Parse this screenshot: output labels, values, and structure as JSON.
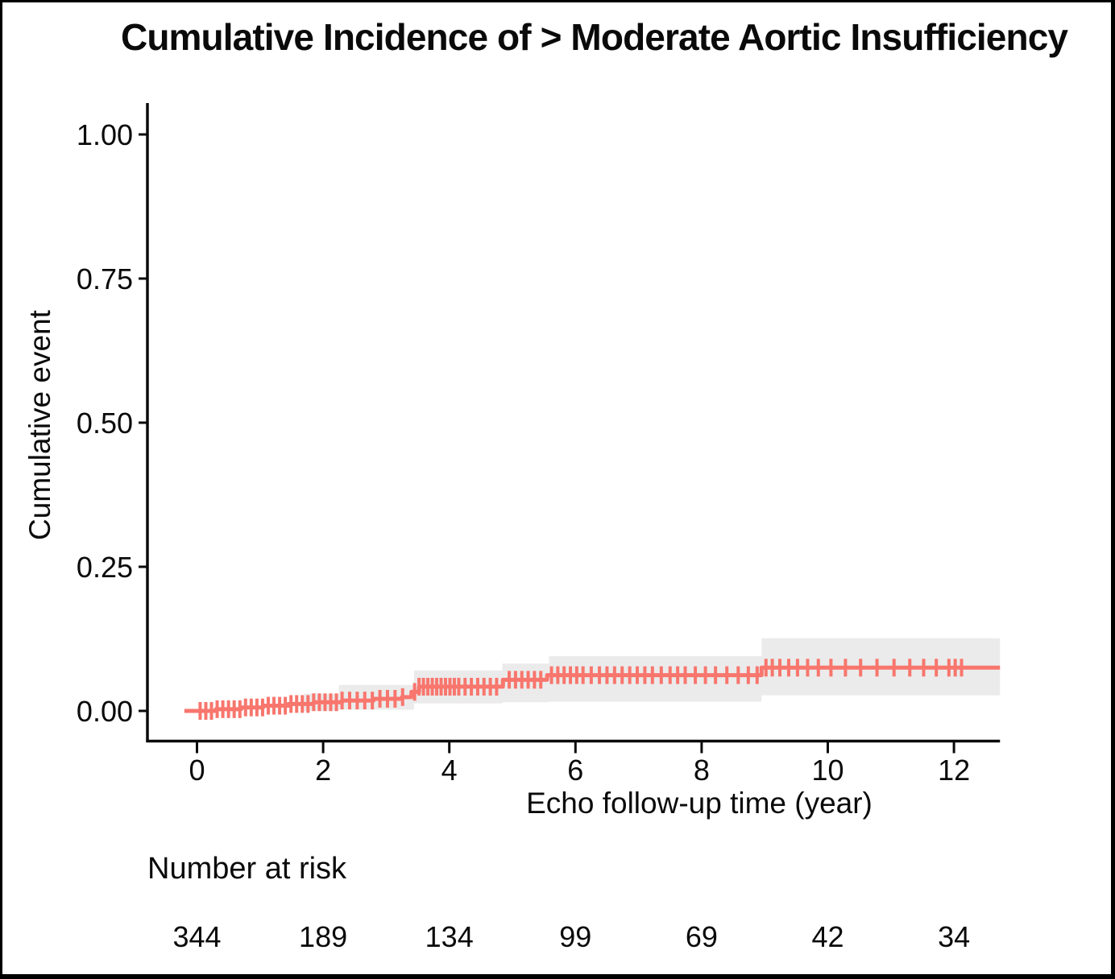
{
  "frame": {
    "background_color": "#ffffff",
    "border_color": "#000000"
  },
  "chart_data": {
    "type": "line",
    "subtype": "kaplan-meier-cumulative-incidence-step-curve",
    "title": "Cumulative Incidence of > Moderate Aortic Insufficiency",
    "xlabel": "Echo follow-up time (year)",
    "ylabel": "Cumulative event",
    "x_ticks": [
      "0",
      "2",
      "4",
      "6",
      "8",
      "10",
      "12"
    ],
    "x_tick_values": [
      0,
      2,
      4,
      6,
      8,
      10,
      12
    ],
    "y_ticks": [
      "0.00",
      "0.25",
      "0.50",
      "0.75",
      "1.00"
    ],
    "y_tick_values": [
      0,
      0.25,
      0.5,
      0.75,
      1.0
    ],
    "xlim": [
      -0.79,
      12.73
    ],
    "ylim": [
      -0.052,
      1.054
    ],
    "grid": false,
    "legend": false,
    "axis_color": "#0a0a0a",
    "series": [
      {
        "name": "cumulative event of > moderate aortic insufficiency",
        "color": "#F8766D",
        "band_color": "#EBEBEB",
        "censor_marker": "vertical-plus-tick",
        "curve_start": -0.2,
        "curve_end": 12.73,
        "steps": [
          [
            0.0,
            0.0
          ],
          [
            0.3,
            0.003
          ],
          [
            0.7,
            0.006
          ],
          [
            1.05,
            0.009
          ],
          [
            1.45,
            0.012
          ],
          [
            1.85,
            0.015
          ],
          [
            2.3,
            0.018
          ],
          [
            2.8,
            0.021
          ],
          [
            3.25,
            0.024
          ],
          [
            3.4,
            0.033
          ],
          [
            3.52,
            0.042
          ],
          [
            4.85,
            0.054
          ],
          [
            5.55,
            0.062
          ],
          [
            8.95,
            0.075
          ]
        ],
        "confidence_band": [
          {
            "t0": 1.7,
            "t1": 2.25,
            "lo": 0.0,
            "hi": 0.03
          },
          {
            "t0": 2.25,
            "t1": 3.44,
            "lo": 0.002,
            "hi": 0.045
          },
          {
            "t0": 3.44,
            "t1": 4.84,
            "lo": 0.013,
            "hi": 0.07
          },
          {
            "t0": 4.84,
            "t1": 5.58,
            "lo": 0.015,
            "hi": 0.082
          },
          {
            "t0": 5.58,
            "t1": 8.95,
            "lo": 0.016,
            "hi": 0.095
          },
          {
            "t0": 8.95,
            "t1": 12.73,
            "lo": 0.027,
            "hi": 0.126
          }
        ],
        "censor_times": [
          0.05,
          0.14,
          0.23,
          0.32,
          0.41,
          0.5,
          0.59,
          0.68,
          0.77,
          0.86,
          0.95,
          1.04,
          1.13,
          1.22,
          1.31,
          1.4,
          1.49,
          1.58,
          1.67,
          1.76,
          1.85,
          1.94,
          2.03,
          2.12,
          2.21,
          2.3,
          2.42,
          2.54,
          2.66,
          2.78,
          2.9,
          3.02,
          3.14,
          3.26,
          3.45,
          3.52,
          3.59,
          3.66,
          3.73,
          3.8,
          3.87,
          3.94,
          4.01,
          4.08,
          4.15,
          4.25,
          4.35,
          4.45,
          4.55,
          4.65,
          4.75,
          4.95,
          5.05,
          5.15,
          5.25,
          5.35,
          5.45,
          5.62,
          5.72,
          5.82,
          5.92,
          6.02,
          6.12,
          6.25,
          6.38,
          6.5,
          6.62,
          6.74,
          6.86,
          6.98,
          7.1,
          7.22,
          7.36,
          7.5,
          7.62,
          7.74,
          7.9,
          8.06,
          8.22,
          8.4,
          8.58,
          8.74,
          8.88,
          9.02,
          9.12,
          9.24,
          9.38,
          9.52,
          9.68,
          9.85,
          10.05,
          10.28,
          10.52,
          10.78,
          11.05,
          11.3,
          11.52,
          11.72,
          11.92,
          12.02,
          12.12
        ]
      }
    ],
    "number_at_risk": {
      "header": "Number at risk",
      "times": [
        0,
        2,
        4,
        6,
        8,
        10,
        12
      ],
      "values": [
        "344",
        "189",
        "134",
        "99",
        "69",
        "42",
        "34"
      ]
    }
  }
}
